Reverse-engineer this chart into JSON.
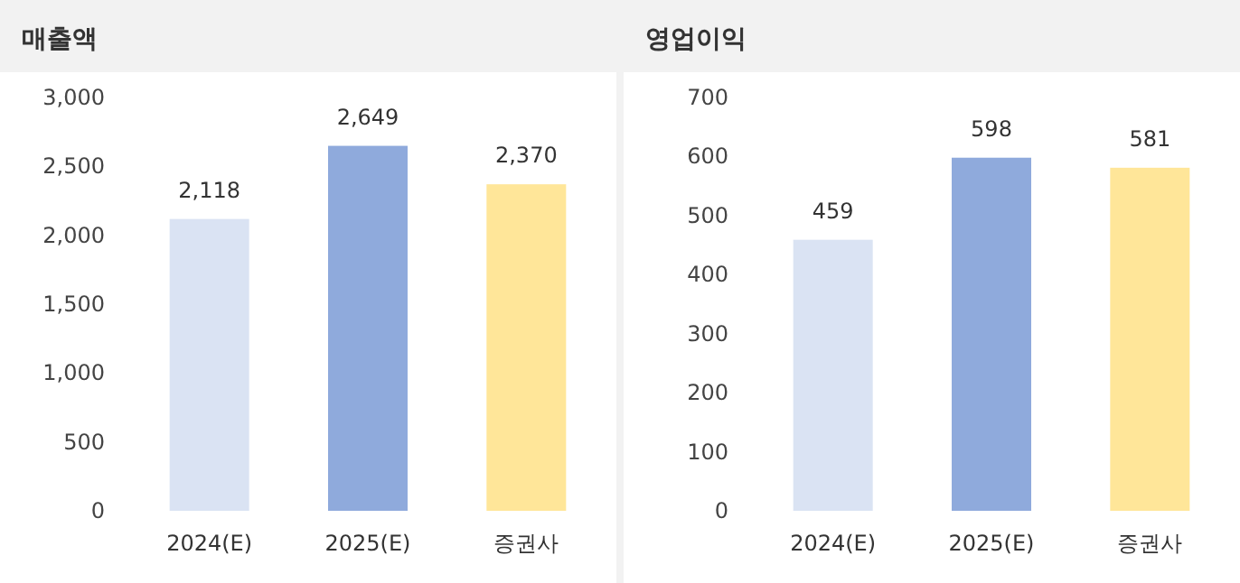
{
  "chart_data": [
    {
      "type": "bar",
      "title": "매출액",
      "categories": [
        "2024(E)",
        "2025(E)",
        "증권사"
      ],
      "values": [
        2118,
        2649,
        2370
      ],
      "value_labels": [
        "2,118",
        "2,649",
        "2,370"
      ],
      "colors": [
        "#dae3f3",
        "#8faadc",
        "#ffe699"
      ],
      "ylim": [
        0,
        3000
      ],
      "yticks": [
        {
          "value": 0,
          "label": "0"
        },
        {
          "value": 500,
          "label": "500"
        },
        {
          "value": 1000,
          "label": "1,000"
        },
        {
          "value": 1500,
          "label": "1,500"
        },
        {
          "value": 2000,
          "label": "2,000"
        },
        {
          "value": 2500,
          "label": "2,500"
        },
        {
          "value": 3000,
          "label": "3,000"
        }
      ]
    },
    {
      "type": "bar",
      "title": "영업이익",
      "categories": [
        "2024(E)",
        "2025(E)",
        "증권사"
      ],
      "values": [
        459,
        598,
        581
      ],
      "colors": [
        "#dae3f3",
        "#8faadc",
        "#ffe699"
      ],
      "ylim": [
        0,
        700
      ],
      "yticks": [
        0,
        100,
        200,
        300,
        400,
        500,
        600,
        700
      ],
      "data_labels": true
    }
  ]
}
